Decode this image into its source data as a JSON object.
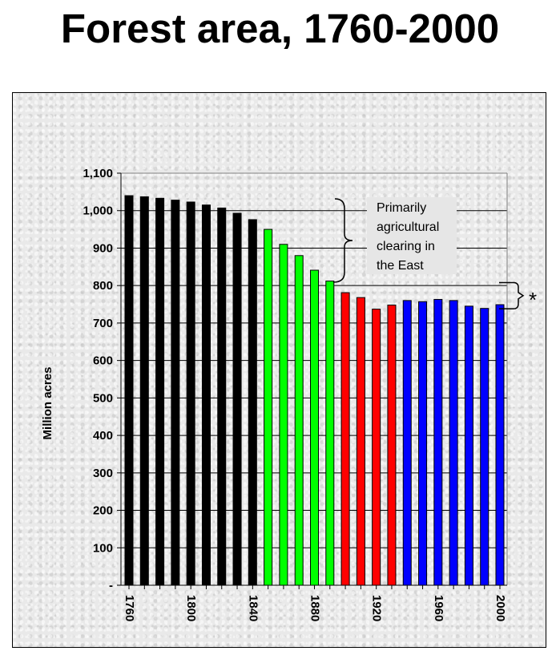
{
  "title": "Forest area, 1760-2000",
  "chart_data": {
    "type": "bar",
    "title": "Forest area, 1760-2000",
    "xlabel": "",
    "ylabel": "Million acres",
    "ylim": [
      0,
      1100
    ],
    "yticks": [
      0,
      100,
      200,
      300,
      400,
      500,
      600,
      700,
      800,
      900,
      1000,
      1100
    ],
    "ytick_labels": [
      "-",
      "100",
      "200",
      "300",
      "400",
      "500",
      "600",
      "700",
      "800",
      "900",
      "1,000",
      "1,100"
    ],
    "xtick_labels": [
      "1760",
      "1800",
      "1840",
      "1880",
      "1920",
      "1960",
      "2000"
    ],
    "xtick_years": [
      1760,
      1800,
      1840,
      1880,
      1920,
      1960,
      2000
    ],
    "grid": true,
    "colors": {
      "black": "#000000",
      "green": "#00ff00",
      "red": "#ff0000",
      "blue": "#0000ff"
    },
    "bars": [
      {
        "year": 1760,
        "value": 1040,
        "color": "#000000"
      },
      {
        "year": 1770,
        "value": 1037,
        "color": "#000000"
      },
      {
        "year": 1780,
        "value": 1033,
        "color": "#000000"
      },
      {
        "year": 1790,
        "value": 1028,
        "color": "#000000"
      },
      {
        "year": 1800,
        "value": 1023,
        "color": "#000000"
      },
      {
        "year": 1810,
        "value": 1015,
        "color": "#000000"
      },
      {
        "year": 1820,
        "value": 1007,
        "color": "#000000"
      },
      {
        "year": 1830,
        "value": 993,
        "color": "#000000"
      },
      {
        "year": 1840,
        "value": 976,
        "color": "#000000"
      },
      {
        "year": 1850,
        "value": 950,
        "color": "#00ff00"
      },
      {
        "year": 1860,
        "value": 910,
        "color": "#00ff00"
      },
      {
        "year": 1870,
        "value": 880,
        "color": "#00ff00"
      },
      {
        "year": 1880,
        "value": 841,
        "color": "#00ff00"
      },
      {
        "year": 1890,
        "value": 812,
        "color": "#00ff00"
      },
      {
        "year": 1900,
        "value": 781,
        "color": "#ff0000"
      },
      {
        "year": 1910,
        "value": 768,
        "color": "#ff0000"
      },
      {
        "year": 1920,
        "value": 737,
        "color": "#ff0000"
      },
      {
        "year": 1930,
        "value": 748,
        "color": "#ff0000"
      },
      {
        "year": 1940,
        "value": 760,
        "color": "#0000ff"
      },
      {
        "year": 1950,
        "value": 757,
        "color": "#0000ff"
      },
      {
        "year": 1960,
        "value": 763,
        "color": "#0000ff"
      },
      {
        "year": 1970,
        "value": 760,
        "color": "#0000ff"
      },
      {
        "year": 1980,
        "value": 745,
        "color": "#0000ff"
      },
      {
        "year": 1990,
        "value": 739,
        "color": "#0000ff"
      },
      {
        "year": 2000,
        "value": 749,
        "color": "#0000ff"
      }
    ],
    "annotations": [
      {
        "lines": [
          "Primarily",
          "agricultural",
          "clearing in",
          "the East"
        ]
      },
      {
        "text": "*"
      }
    ]
  }
}
